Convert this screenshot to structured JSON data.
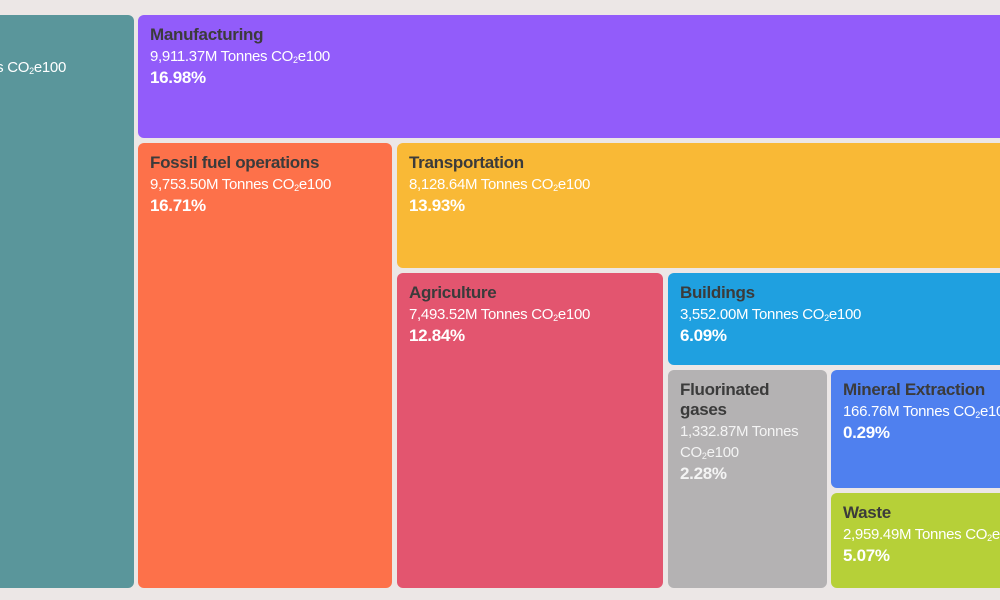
{
  "chart_data": {
    "type": "treemap",
    "unit_prefix": "M Tonnes CO",
    "unit_sub": "2",
    "unit_suffix": "e100",
    "items": [
      {
        "name": "",
        "value_text": "",
        "percent": "",
        "color": "#5a969b"
      },
      {
        "name": "Manufacturing",
        "value_text": "9,911.37",
        "percent": "16.98%",
        "color": "#925cfa"
      },
      {
        "name": "Fossil fuel operations",
        "value_text": "9,753.50",
        "percent": "16.71%",
        "color": "#fd714a"
      },
      {
        "name": "Transportation",
        "value_text": "8,128.64",
        "percent": "13.93%",
        "color": "#f9b936"
      },
      {
        "name": "Agriculture",
        "value_text": "7,493.52",
        "percent": "12.84%",
        "color": "#e3556f"
      },
      {
        "name": "Buildings",
        "value_text": "3,552.00",
        "percent": "6.09%",
        "color": "#1fa0e0"
      },
      {
        "name": "Fluorinated gases",
        "value_text": "1,332.87",
        "percent": "2.28%",
        "color": "#b4b2b3"
      },
      {
        "name": "Mineral Extraction",
        "value_text": "166.76",
        "percent": "0.29%",
        "color": "#4f80ef"
      },
      {
        "name": "Waste",
        "value_text": "2,959.49",
        "percent": "5.07%",
        "color": "#b6d038"
      }
    ]
  }
}
